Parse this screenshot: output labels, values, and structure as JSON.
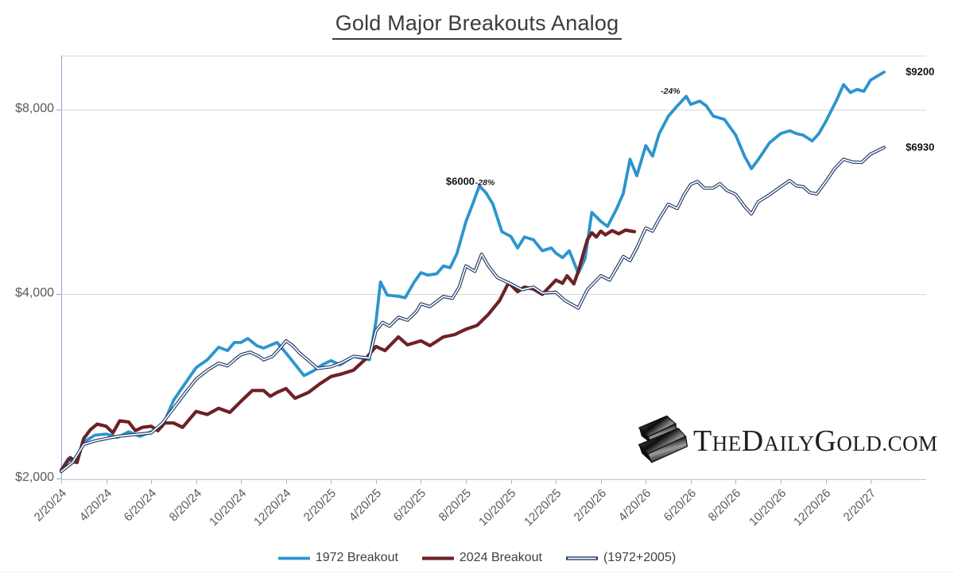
{
  "title": {
    "text": "Gold Major Breakouts Analog"
  },
  "logo": {
    "name": "TheDailyGold.com",
    "icon": "gold-bar-icon",
    "segments": [
      "T",
      "HE",
      "D",
      "AILY",
      "G",
      "OLD",
      ".COM"
    ]
  },
  "chart_data": {
    "type": "line",
    "title": "Gold Major Breakouts Analog",
    "xlabel": "",
    "ylabel": "",
    "y_scale": "log2",
    "ylim": [
      2000,
      9800
    ],
    "grid": "horizontal",
    "legend_position": "bottom-center",
    "x_unit": "date (20th of month), months indexed from 2/20/24",
    "x_tick_labels": [
      "2/20/24",
      "4/20/24",
      "6/20/24",
      "8/20/24",
      "10/20/24",
      "12/20/24",
      "2/20/25",
      "4/20/25",
      "6/20/25",
      "8/20/25",
      "10/20/25",
      "12/20/25",
      "2/20/26",
      "4/20/26",
      "6/20/26",
      "8/20/26",
      "10/20/26",
      "12/20/26",
      "2/20/27"
    ],
    "y_ticks": [
      {
        "label": "$2,000",
        "value": 2000
      },
      {
        "label": "$4,000",
        "value": 4000
      },
      {
        "label": "$8,000",
        "value": 8000
      }
    ],
    "series": [
      {
        "name": "1972 Breakout",
        "color": "#2b95cd",
        "width": 3.8,
        "style": "solid",
        "points": [
          [
            0,
            2060
          ],
          [
            0.3,
            2150
          ],
          [
            0.6,
            2120
          ],
          [
            1,
            2290
          ],
          [
            1.5,
            2350
          ],
          [
            2,
            2360
          ],
          [
            2.5,
            2330
          ],
          [
            3,
            2380
          ],
          [
            3.5,
            2340
          ],
          [
            4,
            2380
          ],
          [
            4.5,
            2430
          ],
          [
            5,
            2680
          ],
          [
            5.5,
            2850
          ],
          [
            6,
            3030
          ],
          [
            6.5,
            3120
          ],
          [
            7,
            3270
          ],
          [
            7.4,
            3230
          ],
          [
            7.7,
            3330
          ],
          [
            8,
            3330
          ],
          [
            8.3,
            3380
          ],
          [
            8.7,
            3290
          ],
          [
            9,
            3260
          ],
          [
            9.6,
            3330
          ],
          [
            10,
            3200
          ],
          [
            10.8,
            2940
          ],
          [
            11.2,
            2990
          ],
          [
            11.6,
            3060
          ],
          [
            12,
            3110
          ],
          [
            12.4,
            3060
          ],
          [
            13,
            3160
          ],
          [
            13.7,
            3120
          ],
          [
            14,
            3600
          ],
          [
            14.2,
            4180
          ],
          [
            14.5,
            3980
          ],
          [
            15,
            3960
          ],
          [
            15.3,
            3940
          ],
          [
            15.7,
            4180
          ],
          [
            16,
            4330
          ],
          [
            16.3,
            4290
          ],
          [
            16.7,
            4310
          ],
          [
            17,
            4440
          ],
          [
            17.3,
            4410
          ],
          [
            17.6,
            4650
          ],
          [
            18,
            5240
          ],
          [
            18.3,
            5600
          ],
          [
            18.6,
            6000
          ],
          [
            18.9,
            5840
          ],
          [
            19.2,
            5600
          ],
          [
            19.6,
            5050
          ],
          [
            20,
            4960
          ],
          [
            20.3,
            4750
          ],
          [
            20.6,
            4950
          ],
          [
            21,
            4900
          ],
          [
            21.4,
            4700
          ],
          [
            21.8,
            4750
          ],
          [
            22,
            4660
          ],
          [
            22.3,
            4580
          ],
          [
            22.6,
            4700
          ],
          [
            23,
            4320
          ],
          [
            23.3,
            4560
          ],
          [
            23.6,
            5430
          ],
          [
            24,
            5250
          ],
          [
            24.3,
            5150
          ],
          [
            24.7,
            5500
          ],
          [
            25,
            5830
          ],
          [
            25.3,
            6630
          ],
          [
            25.6,
            6230
          ],
          [
            26,
            6980
          ],
          [
            26.3,
            6710
          ],
          [
            26.6,
            7300
          ],
          [
            27,
            7790
          ],
          [
            27.4,
            8100
          ],
          [
            27.8,
            8400
          ],
          [
            28,
            8150
          ],
          [
            28.4,
            8250
          ],
          [
            28.7,
            8100
          ],
          [
            29,
            7800
          ],
          [
            29.5,
            7700
          ],
          [
            30,
            7260
          ],
          [
            30.4,
            6700
          ],
          [
            30.7,
            6400
          ],
          [
            31,
            6620
          ],
          [
            31.5,
            7050
          ],
          [
            32,
            7300
          ],
          [
            32.4,
            7380
          ],
          [
            32.7,
            7300
          ],
          [
            33,
            7260
          ],
          [
            33.4,
            7100
          ],
          [
            33.7,
            7300
          ],
          [
            34,
            7630
          ],
          [
            34.5,
            8300
          ],
          [
            34.8,
            8780
          ],
          [
            35.1,
            8520
          ],
          [
            35.4,
            8620
          ],
          [
            35.7,
            8560
          ],
          [
            36,
            8930
          ],
          [
            36.6,
            9200
          ]
        ]
      },
      {
        "name": "2024 Breakout",
        "color": "#6e2125",
        "width": 4.2,
        "style": "solid",
        "points": [
          [
            0,
            2060
          ],
          [
            0.4,
            2160
          ],
          [
            0.7,
            2120
          ],
          [
            1,
            2320
          ],
          [
            1.3,
            2400
          ],
          [
            1.6,
            2450
          ],
          [
            2,
            2430
          ],
          [
            2.3,
            2370
          ],
          [
            2.6,
            2480
          ],
          [
            3,
            2470
          ],
          [
            3.3,
            2390
          ],
          [
            3.6,
            2420
          ],
          [
            4,
            2430
          ],
          [
            4.3,
            2390
          ],
          [
            4.6,
            2460
          ],
          [
            5,
            2460
          ],
          [
            5.4,
            2420
          ],
          [
            6,
            2570
          ],
          [
            6.5,
            2540
          ],
          [
            7,
            2600
          ],
          [
            7.5,
            2560
          ],
          [
            8,
            2670
          ],
          [
            8.5,
            2780
          ],
          [
            9,
            2780
          ],
          [
            9.3,
            2720
          ],
          [
            9.6,
            2760
          ],
          [
            10,
            2800
          ],
          [
            10.4,
            2700
          ],
          [
            11,
            2760
          ],
          [
            11.5,
            2850
          ],
          [
            12,
            2930
          ],
          [
            12.5,
            2960
          ],
          [
            13,
            3000
          ],
          [
            13.5,
            3120
          ],
          [
            14,
            3280
          ],
          [
            14.4,
            3230
          ],
          [
            15,
            3400
          ],
          [
            15.4,
            3300
          ],
          [
            16,
            3350
          ],
          [
            16.4,
            3290
          ],
          [
            17,
            3400
          ],
          [
            17.5,
            3430
          ],
          [
            18,
            3500
          ],
          [
            18.5,
            3550
          ],
          [
            19,
            3700
          ],
          [
            19.5,
            3900
          ],
          [
            19.9,
            4170
          ],
          [
            20.3,
            4030
          ],
          [
            20.6,
            4100
          ],
          [
            21,
            4070
          ],
          [
            21.4,
            3990
          ],
          [
            22,
            4210
          ],
          [
            22.3,
            4160
          ],
          [
            22.5,
            4280
          ],
          [
            22.8,
            4150
          ],
          [
            23,
            4350
          ],
          [
            23.2,
            4620
          ],
          [
            23.4,
            4900
          ],
          [
            23.6,
            5030
          ],
          [
            23.8,
            4950
          ],
          [
            24,
            5060
          ],
          [
            24.2,
            4990
          ],
          [
            24.5,
            5070
          ],
          [
            24.8,
            5010
          ],
          [
            25.1,
            5080
          ],
          [
            25.5,
            5050
          ]
        ]
      },
      {
        "name": "(1972+2005)",
        "color": "#1f3864",
        "width": 4,
        "style": "double",
        "points": [
          [
            0,
            2050
          ],
          [
            0.5,
            2120
          ],
          [
            1,
            2270
          ],
          [
            1.5,
            2300
          ],
          [
            2,
            2320
          ],
          [
            2.5,
            2340
          ],
          [
            3,
            2350
          ],
          [
            3.5,
            2360
          ],
          [
            4,
            2370
          ],
          [
            4.5,
            2460
          ],
          [
            5,
            2600
          ],
          [
            5.5,
            2750
          ],
          [
            6,
            2900
          ],
          [
            6.5,
            3000
          ],
          [
            7,
            3080
          ],
          [
            7.4,
            3050
          ],
          [
            7.8,
            3140
          ],
          [
            8,
            3180
          ],
          [
            8.4,
            3210
          ],
          [
            8.8,
            3160
          ],
          [
            9,
            3120
          ],
          [
            9.4,
            3160
          ],
          [
            9.8,
            3280
          ],
          [
            10,
            3350
          ],
          [
            10.3,
            3290
          ],
          [
            10.6,
            3200
          ],
          [
            11,
            3110
          ],
          [
            11.4,
            3020
          ],
          [
            12,
            3040
          ],
          [
            12.5,
            3090
          ],
          [
            13,
            3160
          ],
          [
            13.7,
            3140
          ],
          [
            14,
            3480
          ],
          [
            14.3,
            3590
          ],
          [
            14.6,
            3540
          ],
          [
            15,
            3660
          ],
          [
            15.4,
            3620
          ],
          [
            15.8,
            3740
          ],
          [
            16,
            3850
          ],
          [
            16.4,
            3810
          ],
          [
            17,
            3960
          ],
          [
            17.4,
            3930
          ],
          [
            17.7,
            4100
          ],
          [
            18,
            4440
          ],
          [
            18.4,
            4350
          ],
          [
            18.7,
            4640
          ],
          [
            19,
            4440
          ],
          [
            19.4,
            4250
          ],
          [
            20,
            4150
          ],
          [
            20.5,
            4060
          ],
          [
            21,
            4100
          ],
          [
            21.4,
            4010
          ],
          [
            22,
            4020
          ],
          [
            22.4,
            3900
          ],
          [
            23,
            3790
          ],
          [
            23.4,
            4060
          ],
          [
            24,
            4280
          ],
          [
            24.4,
            4210
          ],
          [
            25,
            4600
          ],
          [
            25.3,
            4530
          ],
          [
            25.6,
            4750
          ],
          [
            26,
            5120
          ],
          [
            26.3,
            5060
          ],
          [
            26.6,
            5300
          ],
          [
            27,
            5600
          ],
          [
            27.4,
            5510
          ],
          [
            27.7,
            5800
          ],
          [
            28,
            6030
          ],
          [
            28.3,
            6100
          ],
          [
            28.6,
            5950
          ],
          [
            29,
            5950
          ],
          [
            29.3,
            6050
          ],
          [
            29.6,
            5900
          ],
          [
            30,
            5810
          ],
          [
            30.4,
            5550
          ],
          [
            30.7,
            5400
          ],
          [
            31,
            5650
          ],
          [
            31.5,
            5800
          ],
          [
            32,
            5980
          ],
          [
            32.4,
            6120
          ],
          [
            32.7,
            6000
          ],
          [
            33,
            5980
          ],
          [
            33.3,
            5850
          ],
          [
            33.6,
            5820
          ],
          [
            34,
            6090
          ],
          [
            34.4,
            6400
          ],
          [
            34.8,
            6630
          ],
          [
            35.2,
            6560
          ],
          [
            35.6,
            6550
          ],
          [
            36,
            6760
          ],
          [
            36.6,
            6930
          ]
        ]
      }
    ],
    "annotations": [
      {
        "text": "$6000",
        "month": 17.75,
        "value": 6100,
        "style": "price"
      },
      {
        "text": "-28%",
        "month": 18.85,
        "value": 6060,
        "style": "pct"
      },
      {
        "text": "-24%",
        "month": 27.1,
        "value": 8550,
        "style": "pct"
      },
      {
        "text": "$9200",
        "month": 38.2,
        "value": 9230,
        "style": "price"
      },
      {
        "text": "$6930",
        "month": 38.2,
        "value": 6940,
        "style": "price"
      }
    ]
  }
}
